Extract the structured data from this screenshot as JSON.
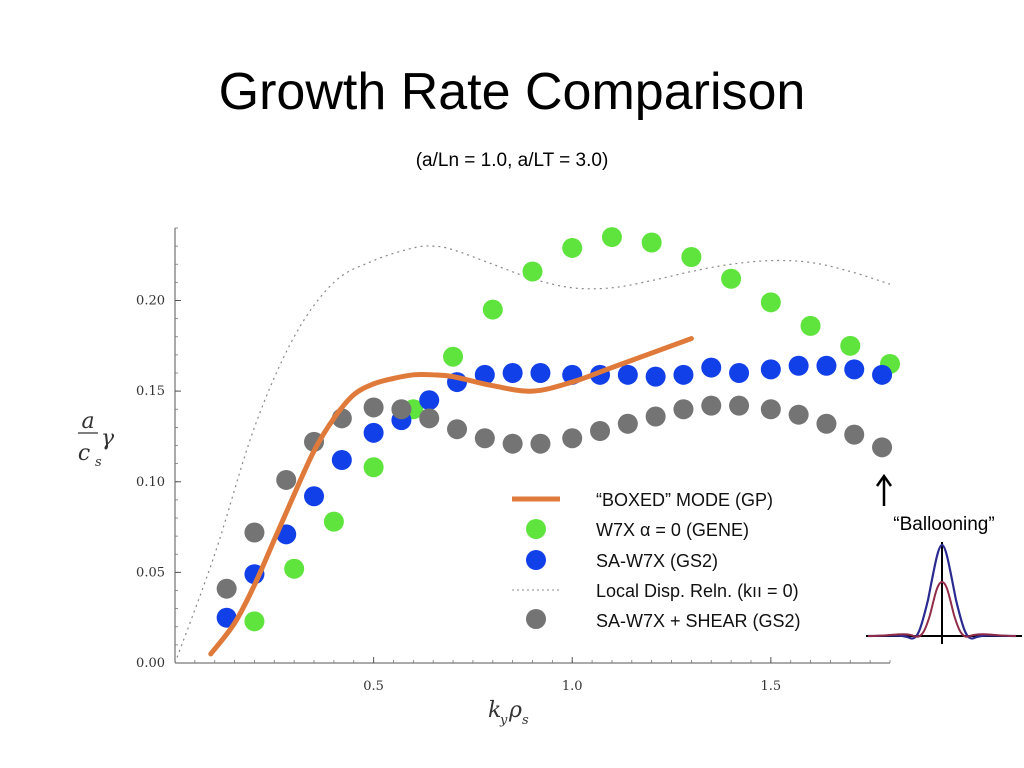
{
  "slide": {
    "title": "Growth Rate Comparison",
    "subtitle": "(a/Ln = 1.0, a/LT = 3.0)"
  },
  "chart_data": {
    "type": "scatter",
    "title": "",
    "xlabel_main": "k",
    "xlabel_sub1": "y",
    "xlabel_mid": "ρ",
    "xlabel_sub2": "s",
    "ylabel_num": "a",
    "ylabel_den_main": "c",
    "ylabel_den_sub": "s",
    "ylabel_suffix": "γ",
    "xlim": [
      0.0,
      1.8
    ],
    "ylim": [
      0.0,
      0.24
    ],
    "x_ticks": [
      0.5,
      1.0,
      1.5
    ],
    "x_tick_labels": [
      "0.5",
      "1.0",
      "1.5"
    ],
    "y_ticks": [
      0.0,
      0.05,
      0.1,
      0.15,
      0.2
    ],
    "y_tick_labels": [
      "0.00",
      "0.05",
      "0.10",
      "0.15",
      "0.20"
    ],
    "grid": false,
    "legend_position": "bottom-right",
    "series": [
      {
        "name": "“BOXED” MODE (GP)",
        "kind": "line",
        "color": "#e07a3a",
        "x": [
          0.09,
          0.15,
          0.2,
          0.25,
          0.3,
          0.35,
          0.4,
          0.45,
          0.5,
          0.55,
          0.6,
          0.65,
          0.7,
          0.8,
          0.9,
          1.0,
          1.1,
          1.2,
          1.3
        ],
        "y": [
          0.005,
          0.022,
          0.043,
          0.068,
          0.093,
          0.117,
          0.135,
          0.148,
          0.154,
          0.157,
          0.159,
          0.159,
          0.158,
          0.153,
          0.15,
          0.155,
          0.163,
          0.171,
          0.179
        ]
      },
      {
        "name": "W7X α = 0 (GENE)",
        "kind": "points",
        "color": "#5fe43d",
        "x": [
          0.2,
          0.3,
          0.4,
          0.5,
          0.6,
          0.7,
          0.8,
          0.9,
          1.0,
          1.1,
          1.2,
          1.3,
          1.4,
          1.5,
          1.6,
          1.7,
          1.8
        ],
        "y": [
          0.023,
          0.052,
          0.078,
          0.108,
          0.14,
          0.169,
          0.195,
          0.216,
          0.229,
          0.235,
          0.232,
          0.224,
          0.212,
          0.199,
          0.186,
          0.175,
          0.165
        ]
      },
      {
        "name": "SA-W7X (GS2)",
        "kind": "points",
        "color": "#1240e8",
        "x": [
          0.13,
          0.2,
          0.28,
          0.35,
          0.42,
          0.5,
          0.57,
          0.64,
          0.71,
          0.78,
          0.85,
          0.92,
          1.0,
          1.07,
          1.14,
          1.21,
          1.28,
          1.35,
          1.42,
          1.5,
          1.57,
          1.64,
          1.71,
          1.78
        ],
        "y": [
          0.025,
          0.049,
          0.071,
          0.092,
          0.112,
          0.127,
          0.134,
          0.145,
          0.155,
          0.159,
          0.16,
          0.16,
          0.159,
          0.159,
          0.159,
          0.158,
          0.159,
          0.163,
          0.16,
          0.162,
          0.164,
          0.164,
          0.162,
          0.159
        ]
      },
      {
        "name": "Local Disp. Reln. (kıı = 0)",
        "kind": "dotted-line",
        "color": "#888888",
        "x": [
          0.0,
          0.1,
          0.2,
          0.3,
          0.4,
          0.5,
          0.6,
          0.65,
          0.7,
          0.8,
          0.9,
          1.0,
          1.1,
          1.2,
          1.3,
          1.4,
          1.5,
          1.6,
          1.7,
          1.8
        ],
        "y": [
          0.0,
          0.06,
          0.13,
          0.18,
          0.21,
          0.222,
          0.229,
          0.23,
          0.228,
          0.22,
          0.212,
          0.207,
          0.207,
          0.211,
          0.216,
          0.22,
          0.222,
          0.221,
          0.216,
          0.209
        ]
      },
      {
        "name": "SA-W7X + SHEAR (GS2)",
        "kind": "points",
        "color": "#747474",
        "x": [
          0.13,
          0.2,
          0.28,
          0.35,
          0.42,
          0.5,
          0.57,
          0.64,
          0.71,
          0.78,
          0.85,
          0.92,
          1.0,
          1.07,
          1.14,
          1.21,
          1.28,
          1.35,
          1.42,
          1.5,
          1.57,
          1.64,
          1.71,
          1.78
        ],
        "y": [
          0.041,
          0.072,
          0.101,
          0.122,
          0.135,
          0.141,
          0.14,
          0.135,
          0.129,
          0.124,
          0.121,
          0.121,
          0.124,
          0.128,
          0.132,
          0.136,
          0.14,
          0.142,
          0.142,
          0.14,
          0.137,
          0.132,
          0.126,
          0.119
        ]
      }
    ],
    "annotation": {
      "label": "“Ballooning”"
    }
  }
}
